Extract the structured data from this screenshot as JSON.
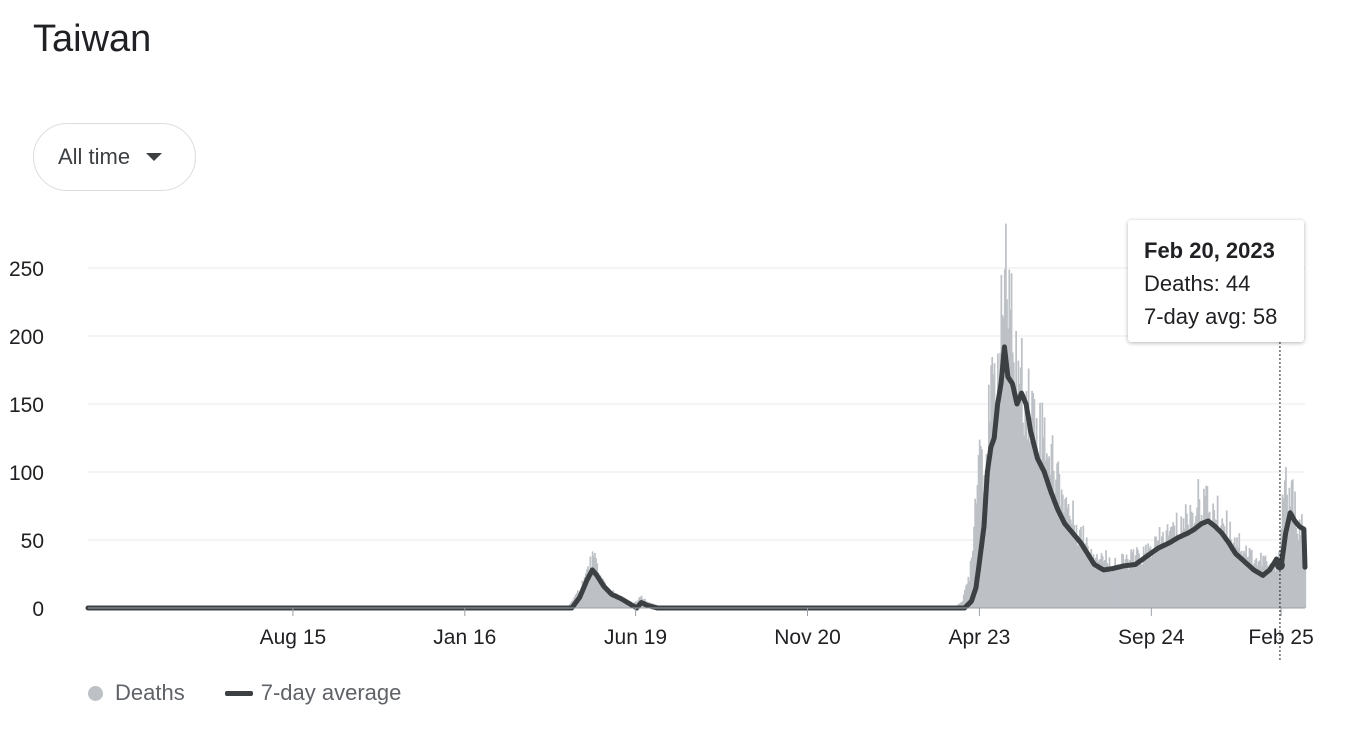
{
  "header": {
    "title": "Taiwan"
  },
  "range_selector": {
    "label": "All time",
    "icon": "caret-down-icon"
  },
  "legend": {
    "bars_label": "Deaths",
    "line_label": "7-day average"
  },
  "tooltip": {
    "date": "Feb 20, 2023",
    "deaths": "Deaths: 44",
    "avg": "7-day avg: 58"
  },
  "colors": {
    "bars": "#bdc1c6",
    "line": "#3c4043",
    "grid": "#e8eaed",
    "axis": "#9aa0a6"
  },
  "chart_data": {
    "type": "bar",
    "title": "",
    "xlabel": "",
    "ylabel": "",
    "ylim": [
      0,
      280
    ],
    "yticks": [
      0,
      50,
      100,
      150,
      200,
      250
    ],
    "x_tick_labels": [
      "Aug 15",
      "Jan 16",
      "Jun 19",
      "Nov 20",
      "Apr 23",
      "Sep 24",
      "Feb 25"
    ],
    "x_tick_positions": [
      180,
      331,
      481,
      632,
      783,
      934,
      1048
    ],
    "legend_position": "bottom-left",
    "grid": true,
    "highlight_index": 1047,
    "series": [
      {
        "name": "Deaths",
        "kind": "bar",
        "keypoints": [
          [
            0,
            0
          ],
          [
            420,
            0
          ],
          [
            428,
            8
          ],
          [
            435,
            20
          ],
          [
            440,
            30
          ],
          [
            443,
            36
          ],
          [
            446,
            32
          ],
          [
            450,
            22
          ],
          [
            456,
            15
          ],
          [
            462,
            10
          ],
          [
            470,
            6
          ],
          [
            478,
            3
          ],
          [
            486,
            8
          ],
          [
            490,
            5
          ],
          [
            500,
            2
          ],
          [
            510,
            0
          ],
          [
            760,
            0
          ],
          [
            768,
            5
          ],
          [
            774,
            25
          ],
          [
            778,
            60
          ],
          [
            781,
            110
          ],
          [
            784,
            125
          ],
          [
            787,
            100
          ],
          [
            790,
            128
          ],
          [
            793,
            150
          ],
          [
            796,
            165
          ],
          [
            800,
            185
          ],
          [
            803,
            210
          ],
          [
            806,
            278
          ],
          [
            808,
            205
          ],
          [
            811,
            212
          ],
          [
            813,
            190
          ],
          [
            816,
            175
          ],
          [
            820,
            165
          ],
          [
            823,
            160
          ],
          [
            827,
            150
          ],
          [
            832,
            140
          ],
          [
            836,
            130
          ],
          [
            840,
            132
          ],
          [
            845,
            110
          ],
          [
            850,
            100
          ],
          [
            856,
            85
          ],
          [
            862,
            70
          ],
          [
            868,
            60
          ],
          [
            875,
            50
          ],
          [
            882,
            42
          ],
          [
            890,
            38
          ],
          [
            898,
            34
          ],
          [
            906,
            32
          ],
          [
            915,
            36
          ],
          [
            925,
            38
          ],
          [
            935,
            44
          ],
          [
            945,
            52
          ],
          [
            955,
            58
          ],
          [
            960,
            62
          ],
          [
            965,
            66
          ],
          [
            970,
            70
          ],
          [
            975,
            78
          ],
          [
            980,
            80
          ],
          [
            985,
            72
          ],
          [
            992,
            68
          ],
          [
            1000,
            60
          ],
          [
            1008,
            52
          ],
          [
            1015,
            44
          ],
          [
            1022,
            38
          ],
          [
            1028,
            34
          ],
          [
            1033,
            36
          ],
          [
            1038,
            28
          ],
          [
            1042,
            30
          ],
          [
            1047,
            44
          ],
          [
            1051,
            105
          ],
          [
            1054,
            70
          ],
          [
            1058,
            82
          ],
          [
            1062,
            65
          ],
          [
            1066,
            58
          ],
          [
            1069,
            44
          ]
        ]
      },
      {
        "name": "7-day average",
        "kind": "line",
        "keypoints": [
          [
            0,
            0
          ],
          [
            425,
            0
          ],
          [
            432,
            8
          ],
          [
            438,
            20
          ],
          [
            443,
            28
          ],
          [
            447,
            24
          ],
          [
            453,
            16
          ],
          [
            460,
            10
          ],
          [
            468,
            7
          ],
          [
            476,
            3
          ],
          [
            482,
            0
          ],
          [
            486,
            4
          ],
          [
            491,
            2
          ],
          [
            500,
            0
          ],
          [
            770,
            0
          ],
          [
            776,
            5
          ],
          [
            780,
            15
          ],
          [
            784,
            40
          ],
          [
            787,
            60
          ],
          [
            790,
            100
          ],
          [
            793,
            118
          ],
          [
            796,
            125
          ],
          [
            799,
            150
          ],
          [
            802,
            165
          ],
          [
            805,
            192
          ],
          [
            808,
            170
          ],
          [
            812,
            165
          ],
          [
            816,
            150
          ],
          [
            820,
            158
          ],
          [
            824,
            150
          ],
          [
            828,
            130
          ],
          [
            834,
            110
          ],
          [
            840,
            100
          ],
          [
            846,
            85
          ],
          [
            852,
            72
          ],
          [
            858,
            62
          ],
          [
            865,
            55
          ],
          [
            872,
            48
          ],
          [
            878,
            40
          ],
          [
            884,
            32
          ],
          [
            892,
            28
          ],
          [
            900,
            29
          ],
          [
            910,
            31
          ],
          [
            920,
            32
          ],
          [
            930,
            38
          ],
          [
            940,
            44
          ],
          [
            950,
            48
          ],
          [
            958,
            52
          ],
          [
            966,
            55
          ],
          [
            972,
            58
          ],
          [
            978,
            62
          ],
          [
            984,
            64
          ],
          [
            990,
            60
          ],
          [
            996,
            55
          ],
          [
            1002,
            48
          ],
          [
            1008,
            40
          ],
          [
            1016,
            34
          ],
          [
            1024,
            28
          ],
          [
            1032,
            24
          ],
          [
            1038,
            28
          ],
          [
            1044,
            36
          ],
          [
            1048,
            30
          ],
          [
            1052,
            55
          ],
          [
            1056,
            70
          ],
          [
            1060,
            64
          ],
          [
            1064,
            60
          ],
          [
            1068,
            58
          ],
          [
            1069,
            30
          ]
        ]
      }
    ]
  }
}
